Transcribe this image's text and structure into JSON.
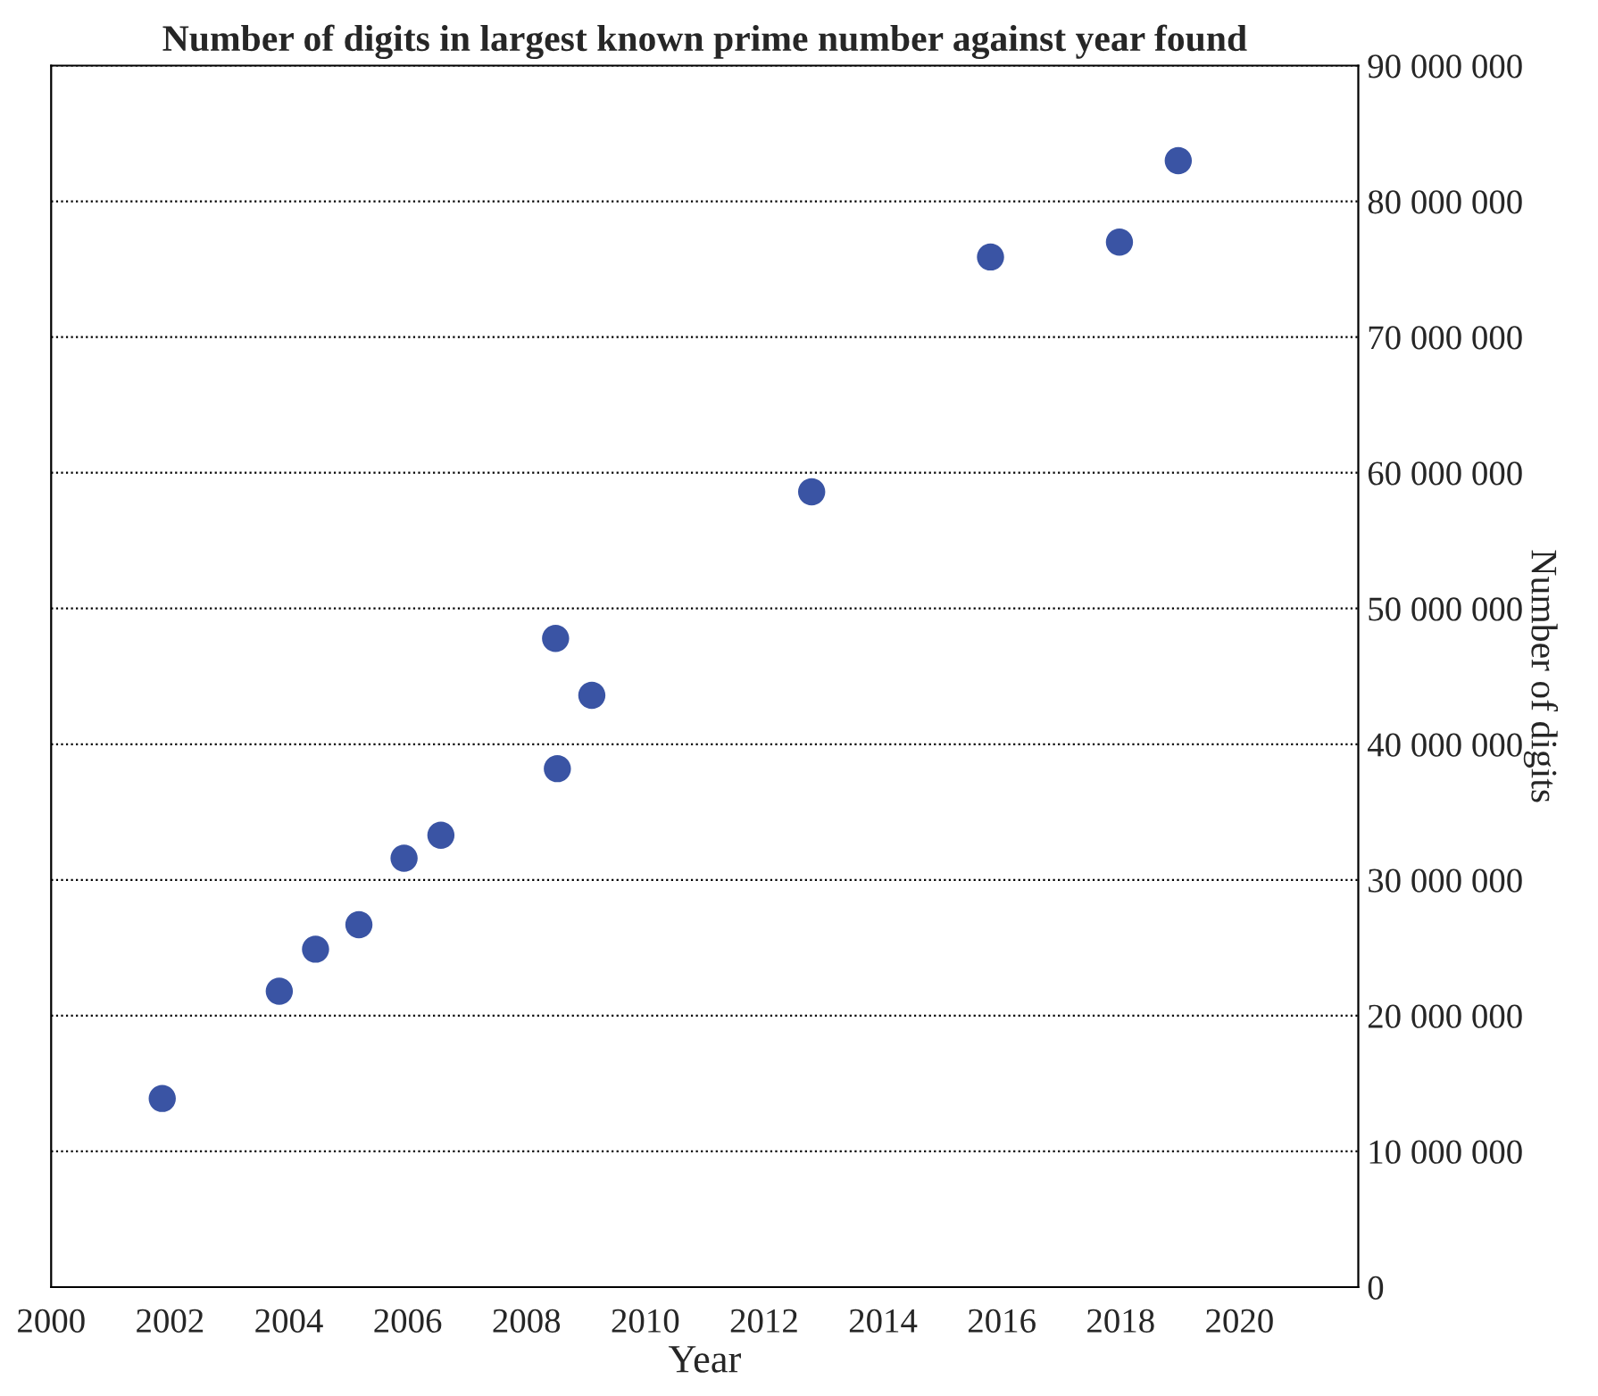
{
  "chart_data": {
    "type": "scatter",
    "title": "Number of digits in largest known prime number against year found",
    "xlabel": "Year",
    "ylabel": "Number of digits",
    "x": [
      2001.87,
      2003.84,
      2004.45,
      2005.18,
      2005.94,
      2006.56,
      2008.49,
      2008.52,
      2009.1,
      2012.8,
      2015.81,
      2017.98,
      2018.97
    ],
    "series": [
      {
        "color": "#3a54a4",
        "values": [
          13900000,
          21800000,
          24900000,
          26700000,
          31600000,
          33300000,
          47800000,
          38200000,
          43600000,
          58600000,
          75900000,
          77000000,
          83000000
        ]
      }
    ],
    "xlim": [
      2000,
      2022
    ],
    "xticks": [
      2000,
      2002,
      2004,
      2006,
      2008,
      2010,
      2012,
      2014,
      2016,
      2018,
      2020
    ],
    "ylim": [
      0,
      90000000
    ],
    "yticks": [
      {
        "value": 0,
        "label": "0"
      },
      {
        "value": 10000000,
        "label": "10 000 000"
      },
      {
        "value": 20000000,
        "label": "20 000 000"
      },
      {
        "value": 30000000,
        "label": "30 000 000"
      },
      {
        "value": 40000000,
        "label": "40 000 000"
      },
      {
        "value": 50000000,
        "label": "50 000 000"
      },
      {
        "value": 60000000,
        "label": "60 000 000"
      },
      {
        "value": 70000000,
        "label": "70 000 000"
      },
      {
        "value": 80000000,
        "label": "80 000 000"
      },
      {
        "value": 90000000,
        "label": "90 000 000"
      }
    ],
    "grid": "y",
    "marker": "circle"
  }
}
